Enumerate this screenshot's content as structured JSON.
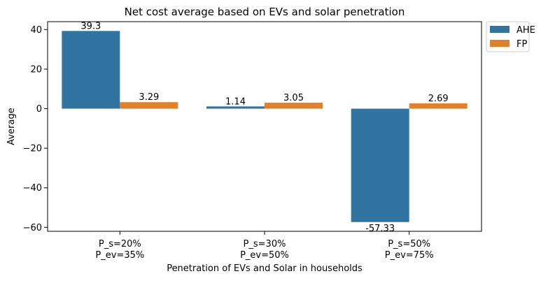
{
  "chart_data": {
    "type": "bar",
    "title": "Net cost average based on EVs and solar penetration",
    "xlabel": "Penetration of EVs and Solar in households",
    "ylabel": "Average",
    "categories": [
      [
        "P_s=20%",
        "P_ev=35%"
      ],
      [
        "P_s=30%",
        "P_ev=50%"
      ],
      [
        "P_s=50%",
        "P_ev=75%"
      ]
    ],
    "series": [
      {
        "name": "AHE",
        "color": "#3274a1",
        "values": [
          39.3,
          1.14,
          -57.33
        ],
        "labels": [
          "39.3",
          "1.14",
          "-57.33"
        ]
      },
      {
        "name": "FP",
        "color": "#e1812c",
        "values": [
          3.29,
          3.05,
          2.69
        ],
        "labels": [
          "3.29",
          "3.05",
          "2.69"
        ]
      }
    ],
    "ylim": [
      -62,
      44
    ],
    "yticks": [
      40,
      20,
      0,
      -20,
      -40,
      -60
    ],
    "ytick_labels": [
      "40",
      "20",
      "0",
      "−20",
      "−40",
      "−60"
    ],
    "grid": false,
    "legend_position": "outside top-right"
  }
}
